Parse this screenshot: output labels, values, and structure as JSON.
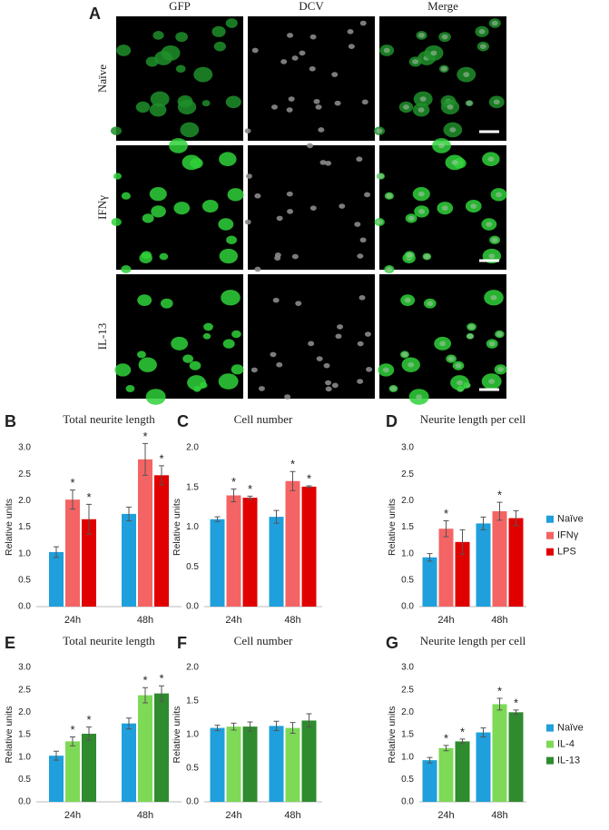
{
  "panel_a": {
    "letter": "A",
    "columns": [
      "GFP",
      "DCV",
      "Merge"
    ],
    "rows": [
      "Naïve",
      "IFNγ",
      "IL-13"
    ]
  },
  "chart_data": [
    {
      "panel": "B",
      "type": "bar",
      "title": "Total neurite length",
      "ylabel": "Relative units",
      "categories": [
        "24h",
        "48h"
      ],
      "ylim": [
        0,
        3
      ],
      "yticks": [
        {
          "value": 0,
          "label": "0.0"
        },
        {
          "value": 0.5,
          "label": "0.5"
        },
        {
          "value": 1,
          "label": "1.0"
        },
        {
          "value": 1.5,
          "label": "1.5"
        },
        {
          "value": 2,
          "label": "2.0"
        },
        {
          "value": 2.5,
          "label": "2.5"
        },
        {
          "value": 3,
          "label": "3.0"
        }
      ],
      "legend": false,
      "series": [
        {
          "color": "#1f9fdb",
          "values": [
            1.03,
            1.75
          ],
          "errors": [
            0.1,
            0.13
          ],
          "stars": [
            null,
            null
          ]
        },
        {
          "color": "#f46464",
          "values": [
            2.02,
            2.78
          ],
          "errors": [
            0.18,
            0.3
          ],
          "stars": [
            "*",
            "*"
          ]
        },
        {
          "color": "#e00000",
          "values": [
            1.65,
            2.48
          ],
          "errors": [
            0.28,
            0.18
          ],
          "stars": [
            "*",
            "*"
          ]
        }
      ]
    },
    {
      "panel": "C",
      "type": "bar",
      "title": "Cell number",
      "ylabel": "Relative units",
      "categories": [
        "24h",
        "48h"
      ],
      "ylim": [
        0,
        2
      ],
      "yticks": [
        {
          "value": 0,
          "label": "0.0"
        },
        {
          "value": 0.5,
          "label": "0.5"
        },
        {
          "value": 1,
          "label": "1.0"
        },
        {
          "value": 1.5,
          "label": "1.5"
        },
        {
          "value": 2,
          "label": "2.0"
        }
      ],
      "legend": false,
      "series": [
        {
          "color": "#1f9fdb",
          "values": [
            1.1,
            1.13
          ],
          "errors": [
            0.03,
            0.08
          ],
          "stars": [
            null,
            null
          ]
        },
        {
          "color": "#f46464",
          "values": [
            1.4,
            1.58
          ],
          "errors": [
            0.08,
            0.12
          ],
          "stars": [
            "*",
            "*"
          ]
        },
        {
          "color": "#e00000",
          "values": [
            1.37,
            1.51
          ],
          "errors": [
            0.02,
            0.01
          ],
          "stars": [
            "*",
            "*"
          ]
        }
      ]
    },
    {
      "panel": "D",
      "type": "bar",
      "title": "Neurite length per cell",
      "ylabel": "Relative units",
      "categories": [
        "24h",
        "48h"
      ],
      "ylim": [
        0,
        3
      ],
      "yticks": [
        {
          "value": 0,
          "label": "0.0"
        },
        {
          "value": 0.5,
          "label": "0.5"
        },
        {
          "value": 1,
          "label": "1.0"
        },
        {
          "value": 1.5,
          "label": "1.5"
        },
        {
          "value": 2,
          "label": "2.0"
        },
        {
          "value": 2.5,
          "label": "2.5"
        },
        {
          "value": 3,
          "label": "3.0"
        }
      ],
      "legend": true,
      "series": [
        {
          "name": "Naïve",
          "color": "#1f9fdb",
          "values": [
            0.93,
            1.57
          ],
          "errors": [
            0.07,
            0.12
          ],
          "stars": [
            null,
            null
          ]
        },
        {
          "name": "IFNγ",
          "color": "#f46464",
          "values": [
            1.47,
            1.8
          ],
          "errors": [
            0.15,
            0.17
          ],
          "stars": [
            "*",
            "*"
          ]
        },
        {
          "name": "LPS",
          "color": "#e00000",
          "values": [
            1.22,
            1.67
          ],
          "errors": [
            0.23,
            0.14
          ],
          "stars": [
            null,
            null
          ]
        }
      ]
    },
    {
      "panel": "E",
      "type": "bar",
      "title": "Total neurite length",
      "ylabel": "Relative units",
      "categories": [
        "24h",
        "48h"
      ],
      "ylim": [
        0,
        3
      ],
      "yticks": [
        {
          "value": 0,
          "label": "0.0"
        },
        {
          "value": 0.5,
          "label": "0.5"
        },
        {
          "value": 1,
          "label": "1.0"
        },
        {
          "value": 1.5,
          "label": "1.5"
        },
        {
          "value": 2,
          "label": "2.0"
        },
        {
          "value": 2.5,
          "label": "2.5"
        },
        {
          "value": 3,
          "label": "3.0"
        }
      ],
      "legend": false,
      "series": [
        {
          "color": "#1f9fdb",
          "values": [
            1.03,
            1.75
          ],
          "errors": [
            0.1,
            0.12
          ],
          "stars": [
            null,
            null
          ]
        },
        {
          "color": "#7ed957",
          "values": [
            1.35,
            2.38
          ],
          "errors": [
            0.1,
            0.17
          ],
          "stars": [
            "*",
            "*"
          ]
        },
        {
          "color": "#2e8b2e",
          "values": [
            1.52,
            2.42
          ],
          "errors": [
            0.15,
            0.17
          ],
          "stars": [
            "*",
            "*"
          ]
        }
      ]
    },
    {
      "panel": "F",
      "type": "bar",
      "title": "Cell number",
      "ylabel": "Relative units",
      "categories": [
        "24h",
        "48h"
      ],
      "ylim": [
        0,
        2
      ],
      "yticks": [
        {
          "value": 0,
          "label": "0.0"
        },
        {
          "value": 0.5,
          "label": "0.5"
        },
        {
          "value": 1,
          "label": "1.0"
        },
        {
          "value": 1.5,
          "label": "1.5"
        },
        {
          "value": 2,
          "label": "2.0"
        }
      ],
      "legend": false,
      "series": [
        {
          "color": "#1f9fdb",
          "values": [
            1.1,
            1.13
          ],
          "errors": [
            0.04,
            0.07
          ],
          "stars": [
            null,
            null
          ]
        },
        {
          "color": "#7ed957",
          "values": [
            1.12,
            1.1
          ],
          "errors": [
            0.05,
            0.08
          ],
          "stars": [
            null,
            null
          ]
        },
        {
          "color": "#2e8b2e",
          "values": [
            1.12,
            1.21
          ],
          "errors": [
            0.07,
            0.1
          ],
          "stars": [
            null,
            null
          ]
        }
      ]
    },
    {
      "panel": "G",
      "type": "bar",
      "title": "Neurite length per cell",
      "ylabel": "Relative units",
      "categories": [
        "24h",
        "48h"
      ],
      "ylim": [
        0,
        3
      ],
      "yticks": [
        {
          "value": 0,
          "label": "0.0"
        },
        {
          "value": 0.5,
          "label": "0.5"
        },
        {
          "value": 1,
          "label": "1.0"
        },
        {
          "value": 1.5,
          "label": "1.5"
        },
        {
          "value": 2,
          "label": "2.0"
        },
        {
          "value": 2.5,
          "label": "2.5"
        },
        {
          "value": 3,
          "label": "3.0"
        }
      ],
      "legend": true,
      "series": [
        {
          "name": "Naïve",
          "color": "#1f9fdb",
          "values": [
            0.93,
            1.55
          ],
          "errors": [
            0.06,
            0.1
          ],
          "stars": [
            null,
            null
          ]
        },
        {
          "name": "IL-4",
          "color": "#7ed957",
          "values": [
            1.2,
            2.18
          ],
          "errors": [
            0.06,
            0.13
          ],
          "stars": [
            "*",
            "*"
          ]
        },
        {
          "name": "IL-13",
          "color": "#2e8b2e",
          "values": [
            1.35,
            2.0
          ],
          "errors": [
            0.05,
            0.05
          ],
          "stars": [
            "*",
            "*"
          ]
        }
      ]
    }
  ]
}
